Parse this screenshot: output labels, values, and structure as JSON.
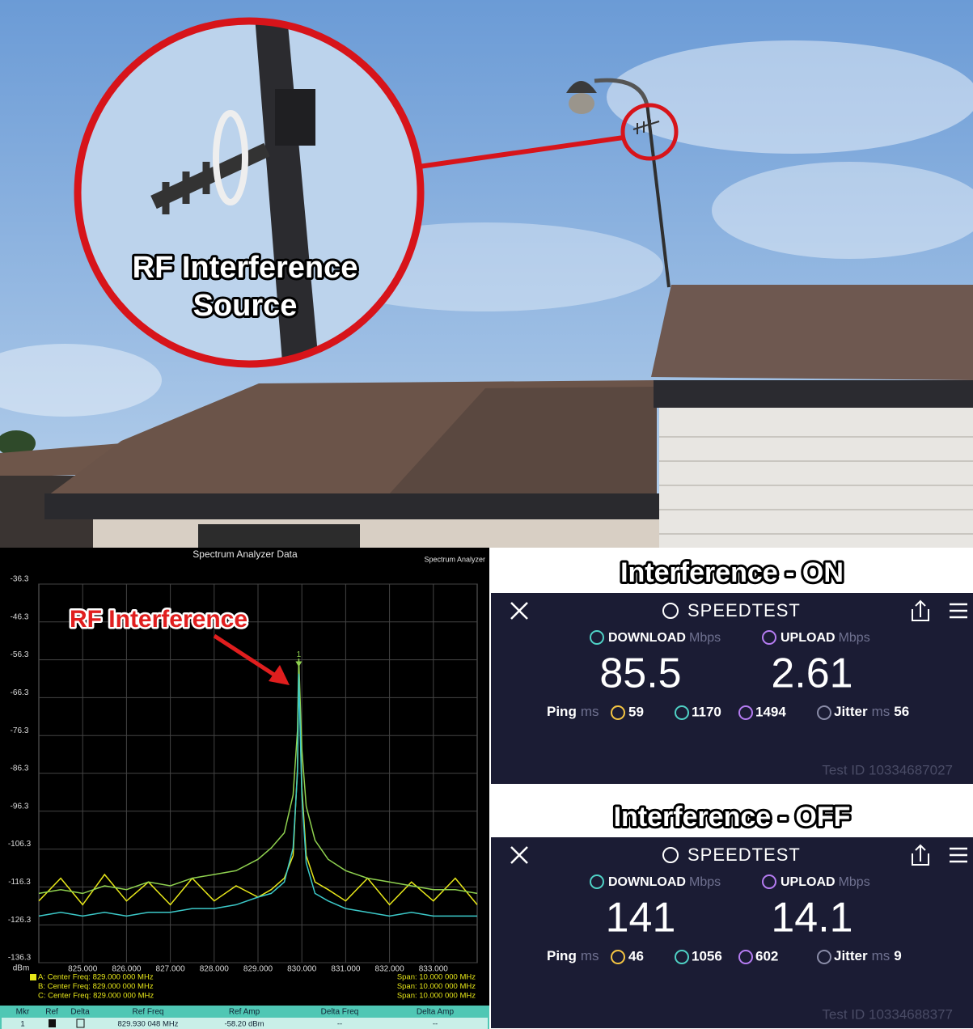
{
  "photo": {
    "callout": [
      "RF Interference",
      "Source"
    ]
  },
  "chart_data": {
    "type": "line",
    "title": "Spectrum Analyzer Data",
    "corner_label": "Spectrum Analyzer",
    "y_unit": "dBm",
    "annotation": "RF Interference",
    "marker_label": "1",
    "x": [
      824,
      824.5,
      825,
      825.5,
      826,
      826.5,
      827,
      827.5,
      828,
      828.5,
      829,
      829.3,
      829.6,
      829.8,
      829.9,
      829.93,
      830,
      830.1,
      830.3,
      830.6,
      831,
      831.5,
      832,
      832.5,
      833,
      833.5,
      834
    ],
    "series": [
      {
        "color": "#e6e619",
        "values": [
          -120,
          -114,
          -121,
          -113,
          -120,
          -115,
          -121,
          -114,
          -120,
          -116,
          -119,
          -117,
          -114,
          -108,
          -85,
          -58,
          -90,
          -108,
          -115,
          -117,
          -120,
          -114,
          -121,
          -115,
          -120,
          -114,
          -121
        ]
      },
      {
        "color": "#8fd14f",
        "values": [
          -118,
          -117,
          -118,
          -116,
          -117,
          -115,
          -116,
          -114,
          -113,
          -112,
          -109,
          -106,
          -102,
          -92,
          -75,
          -56,
          -80,
          -95,
          -104,
          -109,
          -112,
          -114,
          -115,
          -116,
          -117,
          -117,
          -118
        ]
      },
      {
        "color": "#3cc9c9",
        "values": [
          -124,
          -123,
          -124,
          -123,
          -124,
          -123,
          -123,
          -122,
          -122,
          -121,
          -119,
          -118,
          -115,
          -106,
          -86,
          -60,
          -92,
          -110,
          -118,
          -120,
          -122,
          -123,
          -124,
          -123,
          -124,
          -124,
          -124
        ]
      }
    ],
    "xlim": [
      824,
      834
    ],
    "ylim": [
      -136.3,
      -36.3
    ],
    "xticks": [
      {
        "value": 825,
        "label": "825.000"
      },
      {
        "value": 826,
        "label": "826.000"
      },
      {
        "value": 827,
        "label": "827.000"
      },
      {
        "value": 828,
        "label": "828.000"
      },
      {
        "value": 829,
        "label": "829.000"
      },
      {
        "value": 830,
        "label": "830.000"
      },
      {
        "value": 831,
        "label": "831.000"
      },
      {
        "value": 832,
        "label": "832.000"
      },
      {
        "value": 833,
        "label": "833.000"
      }
    ],
    "yticks": [
      -36.3,
      -46.3,
      -56.3,
      -66.3,
      -76.3,
      -86.3,
      -96.3,
      -106.3,
      -116.3,
      -126.3,
      -136.3
    ],
    "grid": true,
    "trace_info": [
      {
        "center": "A: Center Freq: 829.000 000 MHz",
        "span": "Span: 10.000 000 MHz"
      },
      {
        "center": "B: Center Freq: 829.000 000 MHz",
        "span": "Span: 10.000 000 MHz"
      },
      {
        "center": "C: Center Freq: 829.000 000 MHz",
        "span": "Span: 10.000 000 MHz"
      }
    ],
    "marker_table": {
      "columns": [
        "Mkr",
        "Ref",
        "Delta",
        "Ref Freq",
        "Ref Amp",
        "Delta Freq",
        "Delta Amp"
      ],
      "row": [
        "1",
        "829.930 048 MHz",
        "-58.20 dBm",
        "--",
        "--"
      ]
    }
  },
  "speedtests": [
    {
      "heading": "Interference - ON",
      "app": "SPEEDTEST",
      "download_label": "DOWNLOAD",
      "upload_label": "UPLOAD",
      "rate_unit": "Mbps",
      "download": "85.5",
      "upload": "2.61",
      "ping_label": "Ping",
      "ms_unit": "ms",
      "ping": "59",
      "ping_down": "1170",
      "ping_up": "1494",
      "jitter_label": "Jitter",
      "jitter": "56",
      "test_id": "Test ID 10334687027"
    },
    {
      "heading": "Interference - OFF",
      "app": "SPEEDTEST",
      "download_label": "DOWNLOAD",
      "upload_label": "UPLOAD",
      "rate_unit": "Mbps",
      "download": "141",
      "upload": "14.1",
      "ping_label": "Ping",
      "ms_unit": "ms",
      "ping": "46",
      "ping_down": "1056",
      "ping_up": "602",
      "jitter_label": "Jitter",
      "jitter": "9",
      "test_id": "Test ID 10334688377"
    }
  ]
}
